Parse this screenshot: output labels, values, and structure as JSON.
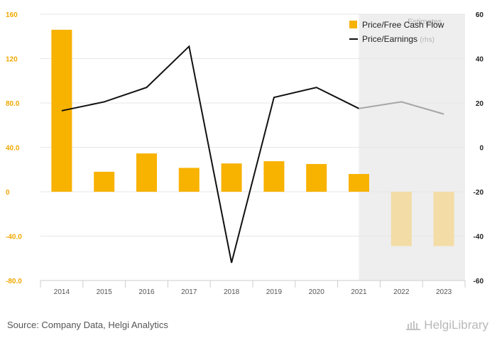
{
  "source_text": "Source: Company Data, Helgi Analytics",
  "brand": "HelgiLibrary",
  "colors": {
    "bar": "#f8b200",
    "bar_estimate": "#f3dca6",
    "line": "#111111",
    "line_estimate": "#a6a6a6",
    "left_axis": "#f0a800",
    "right_axis": "#222222",
    "estimate_bg": "#eeeeee",
    "grid": "#e6e6e6"
  },
  "chart_data": {
    "type": "bar",
    "categories": [
      "2014",
      "2015",
      "2016",
      "2017",
      "2018",
      "2019",
      "2020",
      "2021",
      "2022",
      "2023"
    ],
    "estimate_label": "Estimates",
    "estimate_start": "2021",
    "series": [
      {
        "name": "Price/Free Cash Flow",
        "type": "bar",
        "axis": "left",
        "values": [
          146,
          18,
          34.5,
          21.5,
          25.5,
          27.5,
          25,
          16,
          -49,
          -49
        ]
      },
      {
        "name": "Price/Earnings",
        "legend_suffix": "(rhs)",
        "type": "line",
        "axis": "right",
        "values": [
          16.5,
          20.5,
          27,
          45.5,
          -52,
          22.5,
          27,
          17.5,
          20.5,
          15
        ]
      }
    ],
    "left_axis": {
      "ylim": [
        -80,
        160
      ],
      "ticks": [
        "-80.0",
        "-40.0",
        "0",
        "40.0",
        "80.0",
        "120",
        "160"
      ]
    },
    "right_axis": {
      "ylim": [
        -60,
        60
      ],
      "ticks": [
        "-60",
        "-40",
        "-20",
        "0",
        "20",
        "40",
        "60"
      ]
    },
    "grid": true,
    "legend_position": "top-right"
  }
}
